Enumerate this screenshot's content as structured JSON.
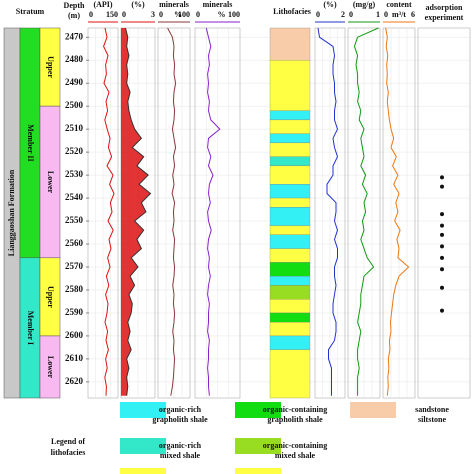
{
  "stratum": {
    "header": "Stratum",
    "formation": "Lianggaoshan Formation",
    "members": [
      {
        "name": "Member II",
        "top": 2466,
        "bottom": 2566,
        "color": "#22dd22"
      },
      {
        "name": "Member I",
        "top": 2566,
        "bottom": 2627,
        "color": "#33e8c8"
      }
    ],
    "submembers": [
      {
        "name": "Upper",
        "top": 2466,
        "bottom": 2500,
        "color": "#ffff44"
      },
      {
        "name": "Lower",
        "top": 2500,
        "bottom": 2566,
        "color": "#f8b8f0"
      },
      {
        "name": "Upper",
        "top": 2566,
        "bottom": 2600,
        "color": "#ffff44"
      },
      {
        "name": "Lower",
        "top": 2600,
        "bottom": 2627,
        "color": "#f8b8f0"
      }
    ]
  },
  "depth": {
    "header": "Depth",
    "unit": "(m)",
    "lim": [
      2466,
      2627
    ],
    "ticks": [
      2470,
      2480,
      2490,
      2500,
      2510,
      2520,
      2530,
      2540,
      2550,
      2560,
      2570,
      2580,
      2590,
      2600,
      2610,
      2620
    ]
  },
  "depths": [
    2466,
    2470,
    2474,
    2478,
    2482,
    2486,
    2490,
    2494,
    2498,
    2502,
    2506,
    2510,
    2514,
    2518,
    2522,
    2526,
    2530,
    2534,
    2538,
    2542,
    2546,
    2550,
    2554,
    2558,
    2562,
    2566,
    2570,
    2574,
    2578,
    2582,
    2586,
    2590,
    2594,
    2598,
    2602,
    2606,
    2610,
    2614,
    2618,
    2622,
    2626
  ],
  "tracks": [
    {
      "title": "(API)",
      "range": [
        0,
        150
      ],
      "color": "#dd1111",
      "values": [
        85,
        95,
        78,
        100,
        88,
        92,
        80,
        105,
        90,
        98,
        84,
        96,
        110,
        102,
        118,
        95,
        125,
        108,
        130,
        112,
        120,
        100,
        126,
        105,
        115,
        98,
        110,
        92,
        104,
        88,
        100,
        95,
        85,
        98,
        90,
        102,
        88,
        96,
        84,
        92,
        90
      ]
    },
    {
      "title": "(%)",
      "range": [
        0,
        3
      ],
      "color": "#dd1111",
      "fill": true,
      "values": [
        0.4,
        0.6,
        0.5,
        0.7,
        0.5,
        0.6,
        0.5,
        0.8,
        0.6,
        0.7,
        0.9,
        1.2,
        1.8,
        1.0,
        2.0,
        1.4,
        2.4,
        1.6,
        2.6,
        1.8,
        2.2,
        1.2,
        2.0,
        1.4,
        1.8,
        0.9,
        1.5,
        0.8,
        1.2,
        0.7,
        1.0,
        0.9,
        0.6,
        0.8,
        0.6,
        0.9,
        0.5,
        0.7,
        0.5,
        0.6,
        0.5
      ]
    },
    {
      "title": "minerals",
      "range": [
        0,
        100
      ],
      "unit": "%",
      "color": "#8b3a3a",
      "values": [
        30,
        45,
        50,
        48,
        52,
        50,
        55,
        50,
        48,
        52,
        50,
        45,
        50,
        55,
        48,
        52,
        46,
        50,
        44,
        52,
        48,
        50,
        46,
        52,
        50,
        48,
        52,
        50,
        46,
        50,
        48,
        52,
        50,
        46,
        50,
        48,
        52,
        50,
        48,
        45,
        40
      ]
    },
    {
      "title": "minerals",
      "range": [
        0,
        100
      ],
      "unit": "%",
      "color": "#8822cc",
      "values": [
        25,
        30,
        35,
        30,
        32,
        28,
        30,
        28,
        32,
        30,
        35,
        55,
        30,
        28,
        35,
        30,
        40,
        32,
        30,
        34,
        28,
        30,
        36,
        30,
        28,
        32,
        30,
        34,
        30,
        28,
        32,
        30,
        30,
        28,
        32,
        30,
        30,
        28,
        30,
        30,
        32
      ]
    },
    {
      "title": "(%)",
      "range": [
        0,
        2
      ],
      "color": "#2233cc",
      "values": [
        0.2,
        0.3,
        1.2,
        1.3,
        1.2,
        1.2,
        1.3,
        1.3,
        1.4,
        1.3,
        1.3,
        1.5,
        1.2,
        1.3,
        1.5,
        1.2,
        1.2,
        0.8,
        0.8,
        1.4,
        1.4,
        1.3,
        1.5,
        1.3,
        1.5,
        1.5,
        1.3,
        1.3,
        1.4,
        1.3,
        1.2,
        1.2,
        1.4,
        1.4,
        1.3,
        0.9,
        0.9,
        1.1,
        1.1,
        1.1,
        1.1
      ]
    },
    {
      "title": "(mg/g)",
      "range": [
        0,
        1
      ],
      "color": "#119911",
      "values": [
        0.95,
        0.3,
        0.2,
        0.3,
        0.25,
        0.3,
        0.3,
        0.35,
        0.3,
        0.4,
        0.35,
        0.5,
        0.4,
        0.45,
        0.5,
        0.4,
        0.55,
        0.45,
        0.6,
        0.5,
        0.55,
        0.45,
        0.5,
        0.4,
        0.5,
        0.6,
        0.8,
        0.5,
        0.45,
        0.4,
        0.4,
        0.35,
        0.3,
        0.4,
        0.35,
        0.3,
        0.3,
        0.35,
        0.3,
        0.3,
        0.3
      ]
    },
    {
      "title": "content",
      "unit": "m³/t",
      "range": [
        0,
        6
      ],
      "color": "#ee7711",
      "values": [
        0.5,
        0.8,
        0.6,
        0.9,
        0.7,
        0.8,
        0.7,
        1.0,
        0.8,
        1.0,
        1.2,
        1.5,
        2.0,
        1.5,
        2.5,
        1.8,
        2.8,
        2.0,
        3.0,
        2.4,
        2.8,
        2.2,
        3.2,
        2.6,
        3.0,
        2.8,
        4.8,
        3.0,
        2.4,
        2.0,
        1.8,
        1.6,
        1.4,
        1.5,
        1.2,
        1.3,
        1.0,
        1.1,
        0.9,
        1.0,
        0.8
      ]
    }
  ],
  "lithofacies": {
    "header": "Lithofacies",
    "beds": [
      {
        "top": 2466,
        "bottom": 2480,
        "facies": 2
      },
      {
        "top": 2480,
        "bottom": 2502,
        "facies": 5
      },
      {
        "top": 2502,
        "bottom": 2506,
        "facies": 0
      },
      {
        "top": 2506,
        "bottom": 2512,
        "facies": 5
      },
      {
        "top": 2512,
        "bottom": 2516,
        "facies": 0
      },
      {
        "top": 2516,
        "bottom": 2522,
        "facies": 5
      },
      {
        "top": 2522,
        "bottom": 2526,
        "facies": 3
      },
      {
        "top": 2526,
        "bottom": 2534,
        "facies": 5
      },
      {
        "top": 2534,
        "bottom": 2540,
        "facies": 0
      },
      {
        "top": 2540,
        "bottom": 2544,
        "facies": 5
      },
      {
        "top": 2544,
        "bottom": 2552,
        "facies": 0
      },
      {
        "top": 2552,
        "bottom": 2556,
        "facies": 5
      },
      {
        "top": 2556,
        "bottom": 2562,
        "facies": 0
      },
      {
        "top": 2562,
        "bottom": 2568,
        "facies": 5
      },
      {
        "top": 2568,
        "bottom": 2574,
        "facies": 1
      },
      {
        "top": 2574,
        "bottom": 2578,
        "facies": 0
      },
      {
        "top": 2578,
        "bottom": 2584,
        "facies": 4
      },
      {
        "top": 2584,
        "bottom": 2590,
        "facies": 5
      },
      {
        "top": 2590,
        "bottom": 2594,
        "facies": 1
      },
      {
        "top": 2594,
        "bottom": 2600,
        "facies": 5
      },
      {
        "top": 2600,
        "bottom": 2606,
        "facies": 0
      },
      {
        "top": 2606,
        "bottom": 2627,
        "facies": 5
      }
    ]
  },
  "adsorption": {
    "header": [
      "adsorption",
      "experiment"
    ],
    "depths": [
      2531,
      2535,
      2547,
      2552,
      2556,
      2561,
      2566,
      2571,
      2579,
      2589
    ]
  },
  "legend": {
    "title": [
      "Legend of",
      "lithofacies"
    ],
    "items": [
      {
        "label": [
          "organic-rich",
          "grapholith shale"
        ],
        "color": "#33f0f5"
      },
      {
        "label": [
          "organic-containing",
          "grapholith shale"
        ],
        "color": "#11dd11"
      },
      {
        "label": [
          "sandstone",
          "siltstone"
        ],
        "color": "#f8cca8"
      },
      {
        "label": [
          "organic-rich",
          "mixed shale"
        ],
        "color": "#33e8c8"
      },
      {
        "label": [
          "organic-containing",
          "mixed shale"
        ],
        "color": "#99dd22"
      },
      {
        "color": "#ffff44"
      }
    ]
  }
}
